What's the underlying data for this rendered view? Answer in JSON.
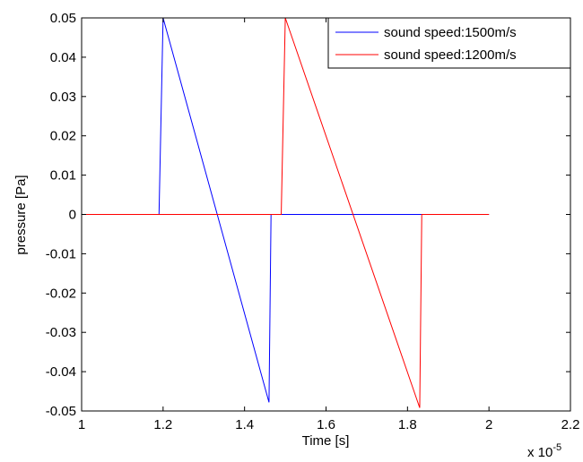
{
  "chart_data": {
    "type": "line",
    "title": "",
    "xlabel": "Time [s]",
    "ylabel": "pressure [Pa]",
    "x_multiplier_label": "x 10",
    "x_multiplier_exponent": "-5",
    "xlim": [
      1,
      2.2
    ],
    "ylim": [
      -0.05,
      0.05
    ],
    "x_ticks": [
      1,
      1.2,
      1.4,
      1.6,
      1.8,
      2,
      2.2
    ],
    "x_tick_labels": [
      "1",
      "1.2",
      "1.4",
      "1.6",
      "1.8",
      "2",
      "2.2"
    ],
    "y_ticks": [
      0.05,
      0.04,
      0.03,
      0.02,
      0.01,
      0,
      -0.01,
      -0.02,
      -0.03,
      -0.04,
      -0.05
    ],
    "y_tick_labels": [
      "0.05",
      "0.04",
      "0.03",
      "0.02",
      "0.01",
      "0",
      "-0.01",
      "-0.02",
      "-0.03",
      "-0.04",
      "-0.05"
    ],
    "grid": false,
    "legend_position": "top-right",
    "series": [
      {
        "name": "sound speed:1500m/s",
        "color": "#0000ff",
        "x": [
          1,
          1.19,
          1.2,
          1.46,
          1.465,
          2
        ],
        "y": [
          0,
          0,
          0.05,
          -0.0478,
          0,
          0
        ]
      },
      {
        "name": "sound speed:1200m/s",
        "color": "#ff0000",
        "x": [
          1,
          1.49,
          1.5,
          1.83,
          1.835,
          2
        ],
        "y": [
          0,
          0,
          0.05,
          -0.0492,
          0,
          0
        ]
      }
    ]
  }
}
